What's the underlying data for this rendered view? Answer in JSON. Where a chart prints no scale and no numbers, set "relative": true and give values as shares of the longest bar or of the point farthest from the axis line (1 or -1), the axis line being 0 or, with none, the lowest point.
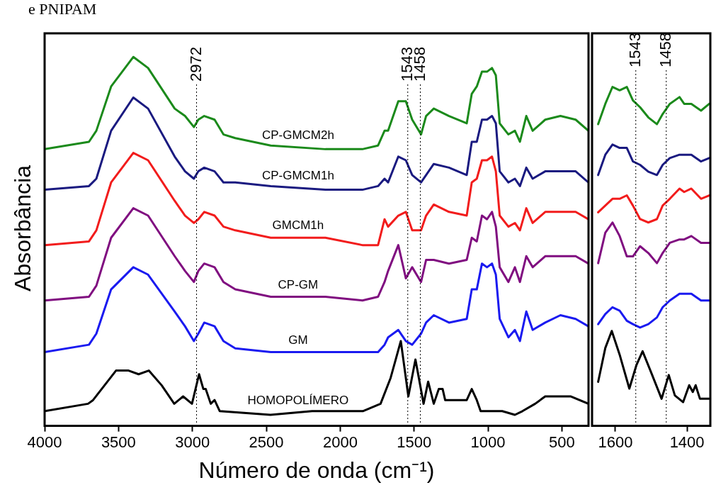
{
  "chart_data": [
    {
      "type": "line",
      "xlabel": "Número de onda (cm⁻¹)",
      "ylabel": "Absorbância",
      "relative": true,
      "marker": "none",
      "xlim": [
        4000,
        320
      ],
      "xticks": [
        4000,
        3500,
        3000,
        2500,
        2000,
        1500,
        1000,
        500
      ],
      "x": [
        4000,
        3700,
        3650,
        3550,
        3400,
        3300,
        3120,
        3050,
        2990,
        2960,
        2920,
        2850,
        2790,
        2710,
        2470,
        2100,
        1850,
        1744,
        1700,
        1676,
        1607,
        1556,
        1513,
        1453,
        1419,
        1367,
        1264,
        1144,
        1110,
        1076,
        1041,
        1007,
        973,
        947,
        921,
        862,
        818,
        784,
        741,
        698,
        613,
        510,
        407,
        321
      ],
      "series": [
        {
          "name": "CP-GMCM2h",
          "color": "#1b8a1b",
          "values": [
            0.75,
            0.77,
            0.8,
            0.92,
            1.0,
            0.97,
            0.86,
            0.84,
            0.81,
            0.83,
            0.84,
            0.83,
            0.79,
            0.78,
            0.76,
            0.75,
            0.75,
            0.76,
            0.8,
            0.8,
            0.88,
            0.88,
            0.83,
            0.79,
            0.84,
            0.86,
            0.84,
            0.82,
            0.9,
            0.92,
            0.96,
            0.96,
            0.97,
            0.95,
            0.82,
            0.79,
            0.8,
            0.77,
            0.84,
            0.8,
            0.83,
            0.84,
            0.83,
            0.8
          ]
        },
        {
          "name": "CP-GMCM1h",
          "color": "#1a1a80",
          "values": [
            0.64,
            0.65,
            0.67,
            0.8,
            0.89,
            0.86,
            0.73,
            0.69,
            0.67,
            0.69,
            0.7,
            0.69,
            0.66,
            0.66,
            0.65,
            0.64,
            0.64,
            0.65,
            0.67,
            0.66,
            0.73,
            0.72,
            0.68,
            0.66,
            0.68,
            0.71,
            0.7,
            0.68,
            0.77,
            0.77,
            0.83,
            0.83,
            0.84,
            0.82,
            0.69,
            0.66,
            0.67,
            0.65,
            0.7,
            0.67,
            0.69,
            0.69,
            0.69,
            0.66
          ]
        },
        {
          "name": "GMCM1h",
          "color": "#f21c1c",
          "values": [
            0.49,
            0.5,
            0.53,
            0.66,
            0.74,
            0.72,
            0.61,
            0.57,
            0.55,
            0.56,
            0.58,
            0.57,
            0.54,
            0.53,
            0.51,
            0.51,
            0.49,
            0.49,
            0.56,
            0.54,
            0.57,
            0.58,
            0.53,
            0.53,
            0.57,
            0.6,
            0.58,
            0.57,
            0.66,
            0.67,
            0.72,
            0.72,
            0.73,
            0.69,
            0.57,
            0.54,
            0.55,
            0.53,
            0.59,
            0.55,
            0.58,
            0.58,
            0.58,
            0.56
          ]
        },
        {
          "name": "CP-GM",
          "color": "#800e80",
          "values": [
            0.34,
            0.35,
            0.38,
            0.51,
            0.59,
            0.57,
            0.46,
            0.42,
            0.39,
            0.42,
            0.44,
            0.43,
            0.39,
            0.37,
            0.35,
            0.35,
            0.34,
            0.35,
            0.39,
            0.42,
            0.49,
            0.4,
            0.43,
            0.39,
            0.45,
            0.45,
            0.44,
            0.45,
            0.51,
            0.5,
            0.57,
            0.56,
            0.58,
            0.54,
            0.43,
            0.39,
            0.43,
            0.39,
            0.46,
            0.43,
            0.46,
            0.46,
            0.46,
            0.44
          ]
        },
        {
          "name": "GM",
          "color": "#1a1af0",
          "values": [
            0.2,
            0.22,
            0.25,
            0.37,
            0.43,
            0.41,
            0.31,
            0.27,
            0.23,
            0.25,
            0.28,
            0.27,
            0.23,
            0.21,
            0.2,
            0.2,
            0.2,
            0.2,
            0.22,
            0.24,
            0.26,
            0.23,
            0.22,
            0.25,
            0.28,
            0.3,
            0.28,
            0.29,
            0.37,
            0.37,
            0.44,
            0.43,
            0.44,
            0.41,
            0.29,
            0.24,
            0.26,
            0.23,
            0.31,
            0.26,
            0.28,
            0.3,
            0.29,
            0.27
          ]
        },
        {
          "name": "HOMOPOLÍMERO",
          "color": "#000000",
          "x": [
            4000,
            3706,
            3672,
            3517,
            3432,
            3364,
            3295,
            3208,
            3123,
            3063,
            3003,
            2955,
            2926,
            2910,
            2876,
            2850,
            2815,
            2472,
            2190,
            1847,
            1727,
            1659,
            1590,
            1539,
            1491,
            1436,
            1405,
            1367,
            1333,
            1307,
            1290,
            1230,
            1144,
            1110,
            1076,
            1050,
            904,
            818,
            767,
            681,
            613,
            442,
            321
          ],
          "values": [
            0.04,
            0.06,
            0.07,
            0.15,
            0.15,
            0.14,
            0.15,
            0.11,
            0.06,
            0.08,
            0.06,
            0.14,
            0.1,
            0.1,
            0.06,
            0.07,
            0.04,
            0.03,
            0.04,
            0.04,
            0.06,
            0.13,
            0.23,
            0.08,
            0.18,
            0.06,
            0.12,
            0.06,
            0.1,
            0.1,
            0.07,
            0.07,
            0.07,
            0.1,
            0.07,
            0.04,
            0.04,
            0.03,
            0.04,
            0.06,
            0.08,
            0.08,
            0.06
          ]
        }
      ],
      "ref_lines": [
        {
          "axis": "x",
          "value": 2972,
          "label": "2972"
        },
        {
          "axis": "x",
          "value": 1543,
          "label": "1543"
        },
        {
          "axis": "x",
          "value": 1458,
          "label": "1458"
        }
      ],
      "annotations": [
        "e PNIPAM"
      ]
    },
    {
      "type": "line",
      "relative": true,
      "marker": "none",
      "xlim": [
        1665,
        1335
      ],
      "xticks": [
        1600,
        1400
      ],
      "x": [
        1648,
        1628,
        1608,
        1588,
        1568,
        1551,
        1531,
        1508,
        1484,
        1468,
        1448,
        1421,
        1408,
        1388,
        1361,
        1338
      ],
      "series": [
        {
          "color": "#1b8a1b",
          "values": [
            0.89,
            0.95,
            1.0,
            0.99,
            1.0,
            0.96,
            0.94,
            0.91,
            0.89,
            0.92,
            0.95,
            0.97,
            0.95,
            0.95,
            0.93,
            0.95
          ]
        },
        {
          "color": "#1a1a80",
          "values": [
            0.74,
            0.8,
            0.83,
            0.82,
            0.82,
            0.78,
            0.77,
            0.75,
            0.74,
            0.77,
            0.79,
            0.8,
            0.8,
            0.8,
            0.78,
            0.79
          ]
        },
        {
          "color": "#f21c1c",
          "values": [
            0.63,
            0.65,
            0.67,
            0.67,
            0.68,
            0.65,
            0.61,
            0.6,
            0.61,
            0.65,
            0.67,
            0.7,
            0.69,
            0.7,
            0.67,
            0.68
          ]
        },
        {
          "color": "#800e80",
          "values": [
            0.48,
            0.57,
            0.6,
            0.56,
            0.5,
            0.5,
            0.53,
            0.51,
            0.48,
            0.51,
            0.54,
            0.55,
            0.55,
            0.56,
            0.54,
            0.54
          ]
        },
        {
          "color": "#1a1af0",
          "values": [
            0.3,
            0.33,
            0.35,
            0.34,
            0.31,
            0.3,
            0.29,
            0.3,
            0.32,
            0.35,
            0.37,
            0.39,
            0.39,
            0.39,
            0.37,
            0.37
          ]
        },
        {
          "color": "#000000",
          "x": [
            1648,
            1628,
            1610,
            1588,
            1561,
            1541,
            1524,
            1501,
            1471,
            1451,
            1434,
            1411,
            1394,
            1384,
            1376,
            1364,
            1338
          ],
          "values": [
            0.13,
            0.23,
            0.28,
            0.21,
            0.11,
            0.18,
            0.22,
            0.16,
            0.08,
            0.15,
            0.09,
            0.07,
            0.12,
            0.1,
            0.12,
            0.08,
            0.08
          ]
        }
      ],
      "ref_lines": [
        {
          "axis": "x",
          "value": 1543,
          "label": "1543"
        },
        {
          "axis": "x",
          "value": 1458,
          "label": "1458"
        }
      ]
    }
  ]
}
